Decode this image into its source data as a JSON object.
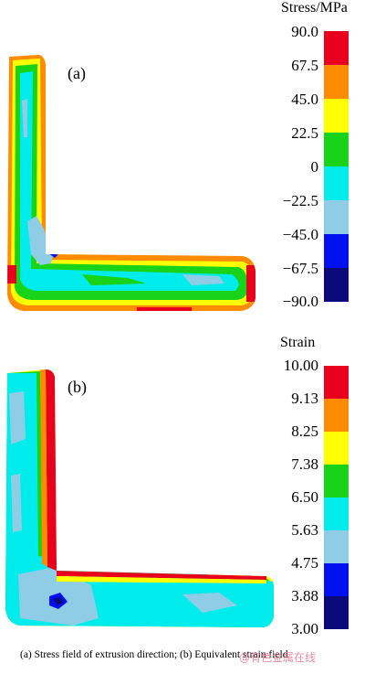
{
  "figure": {
    "panel_a": {
      "label": "(a)",
      "colorbar_title": "Stress/MPa",
      "ticks": [
        "90.0",
        "67.5",
        "45.0",
        "22.5",
        "0",
        "−22.5",
        "−45.0",
        "−67.5",
        "−90.0"
      ],
      "bands_top_to_bottom": [
        "#e8001c",
        "#ff8c00",
        "#ffff00",
        "#19d319",
        "#00ecec",
        "#8fcde6",
        "#0010f0",
        "#0a0a7a"
      ]
    },
    "panel_b": {
      "label": "(b)",
      "colorbar_title": "Strain",
      "ticks": [
        "10.00",
        "9.13",
        "8.25",
        "7.38",
        "6.50",
        "5.63",
        "4.75",
        "3.88",
        "3.00"
      ],
      "bands_top_to_bottom": [
        "#e8001c",
        "#ff8c00",
        "#ffff00",
        "#19d319",
        "#00ecec",
        "#8fcde6",
        "#0010f0",
        "#0a0a7a"
      ]
    },
    "caption": "(a) Stress field of extrusion direction; (b) Equivalent strain field",
    "watermark": "@有色金属在线"
  }
}
